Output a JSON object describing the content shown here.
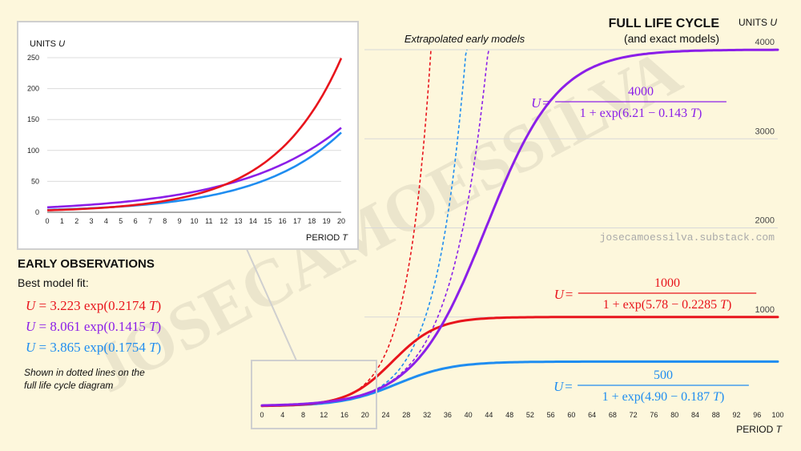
{
  "watermark": {
    "big": "JOSECAMOESSILVA",
    "url": "josecamoessilva.substack.com"
  },
  "colors": {
    "red": "#e8141c",
    "purple": "#8b1fe8",
    "blue": "#1f8df0",
    "grid": "#d8d8d8",
    "bg": "#fdf7dc"
  },
  "chart_data": [
    {
      "id": "full",
      "type": "line",
      "title": "FULL LIFE CYCLE",
      "subtitle": "(and exact models)",
      "ylabel": "UNITS U",
      "xlabel": "PERIOD T",
      "xlim": [
        0,
        100
      ],
      "ylim": [
        0,
        4000
      ],
      "xticks": [
        0,
        4,
        8,
        12,
        16,
        20,
        24,
        28,
        32,
        36,
        40,
        44,
        48,
        52,
        56,
        60,
        64,
        68,
        72,
        76,
        80,
        84,
        88,
        92,
        96,
        100
      ],
      "xtick_labels": [
        "0",
        "4",
        "8",
        "12",
        "16",
        "20",
        "24",
        "28",
        "32",
        "36",
        "40",
        "44",
        "48",
        "52",
        "56",
        "60",
        "64",
        "68",
        "72",
        "76",
        "80",
        "84",
        "88",
        "92",
        "96",
        "100"
      ],
      "yticks": [
        1000,
        2000,
        3000,
        4000
      ],
      "ytick_labels": [
        "1000",
        "2000",
        "3000",
        "4000"
      ],
      "annotation": "Extrapolated early models",
      "series": [
        {
          "color": "red",
          "model": "logistic",
          "K": 1000,
          "a": 5.78,
          "b": 0.2285,
          "formula_num": "1000",
          "formula_den": "1 + exp(5.78 − 0.2285 T)"
        },
        {
          "color": "purple",
          "model": "logistic",
          "K": 4000,
          "a": 6.21,
          "b": 0.143,
          "formula_num": "4000",
          "formula_den": "1 + exp(6.21 − 0.143 T)"
        },
        {
          "color": "blue",
          "model": "logistic",
          "K": 500,
          "a": 4.9,
          "b": 0.187,
          "formula_num": "500",
          "formula_den": "1 + exp(4.90 − 0.187 T)"
        },
        {
          "color": "red",
          "model": "exp_dotted",
          "A": 3.223,
          "r": 0.2174
        },
        {
          "color": "purple",
          "model": "exp_dotted",
          "A": 8.061,
          "r": 0.1415
        },
        {
          "color": "blue",
          "model": "exp_dotted",
          "A": 3.865,
          "r": 0.1754
        }
      ]
    },
    {
      "id": "inset",
      "type": "line",
      "ylabel": "UNITS U",
      "xlabel": "PERIOD T",
      "xlim": [
        0,
        20
      ],
      "ylim": [
        0,
        250
      ],
      "xticks": [
        0,
        1,
        2,
        3,
        4,
        5,
        6,
        7,
        8,
        9,
        10,
        11,
        12,
        13,
        14,
        15,
        16,
        17,
        18,
        19,
        20
      ],
      "xtick_labels": [
        "0",
        "1",
        "2",
        "3",
        "4",
        "5",
        "6",
        "7",
        "8",
        "9",
        "10",
        "11",
        "12",
        "13",
        "14",
        "15",
        "16",
        "17",
        "18",
        "19",
        "20"
      ],
      "yticks": [
        0,
        50,
        100,
        150,
        200,
        250
      ],
      "ytick_labels": [
        "0",
        "50",
        "100",
        "150",
        "200",
        "250"
      ],
      "series": [
        {
          "color": "red",
          "A": 3.223,
          "r": 0.2174
        },
        {
          "color": "purple",
          "A": 8.061,
          "r": 0.1415
        },
        {
          "color": "blue",
          "A": 3.865,
          "r": 0.1754
        }
      ]
    }
  ],
  "early": {
    "heading": "EARLY OBSERVATIONS",
    "subheading": "Best model fit:",
    "models": [
      {
        "color": "red",
        "A": "3.223",
        "r": "0.2174"
      },
      {
        "color": "purple",
        "A": "8.061",
        "r": "0.1415"
      },
      {
        "color": "blue",
        "A": "3.865",
        "r": "0.1754"
      }
    ],
    "note_line1": "Shown in dotted lines on the",
    "note_line2": "full life cycle diagram"
  }
}
